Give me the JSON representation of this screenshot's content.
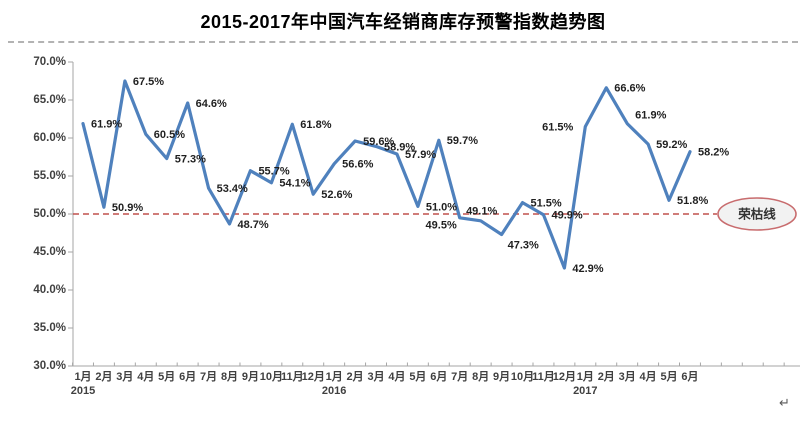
{
  "document": {
    "return_mark": "↵"
  },
  "chart_data": {
    "type": "line",
    "title": "2015-2017年中国汽车经销商库存预警指数趋势图",
    "categories": [
      "1月",
      "2月",
      "3月",
      "4月",
      "5月",
      "6月",
      "7月",
      "8月",
      "9月",
      "10月",
      "11月",
      "12月",
      "1月",
      "2月",
      "3月",
      "4月",
      "5月",
      "6月",
      "7月",
      "8月",
      "9月",
      "10月",
      "11月",
      "12月",
      "1月",
      "2月",
      "3月",
      "4月",
      "5月",
      "6月"
    ],
    "year_markers": [
      {
        "index": 0,
        "label": "2015"
      },
      {
        "index": 12,
        "label": "2016"
      },
      {
        "index": 24,
        "label": "2017"
      }
    ],
    "series": [
      {
        "color": "#4f81bd",
        "values": [
          61.9,
          50.9,
          67.5,
          60.5,
          57.3,
          64.6,
          53.4,
          48.7,
          55.7,
          54.1,
          61.8,
          52.6,
          56.6,
          59.6,
          58.9,
          57.9,
          51.0,
          59.7,
          49.5,
          49.1,
          47.3,
          51.5,
          49.9,
          42.9,
          61.5,
          66.6,
          61.9,
          59.2,
          51.8,
          58.2
        ]
      }
    ],
    "data_labels_visible": true,
    "data_label_format": "{value}%",
    "data_label_placements": [
      "r",
      "r",
      "r",
      "r",
      "r",
      "r",
      "r",
      "r",
      "r",
      "r",
      "r",
      "r",
      "r",
      "r",
      "r",
      "r",
      "r",
      "r",
      "bl",
      "a",
      "br",
      "r",
      "r",
      "r",
      "l",
      "r",
      "ar",
      "r",
      "r",
      "r"
    ],
    "y_axis": {
      "min": 30,
      "max": 70,
      "step": 5,
      "tick_labels": [
        "30.0%",
        "35.0%",
        "40.0%",
        "45.0%",
        "50.0%",
        "55.0%",
        "60.0%",
        "65.0%",
        "70.0%"
      ]
    },
    "reference_line": {
      "value": 50.0,
      "label": "荣枯线",
      "color": "#c0504d",
      "style": "dashed",
      "label_bubble_fill": "#f2f2f2",
      "label_bubble_stroke": "#c86c6e"
    },
    "grid": false,
    "legend": "none",
    "text_color": "#404040",
    "data_label_color": "#1f1f1f",
    "axis_color": "#a6a6a6"
  }
}
